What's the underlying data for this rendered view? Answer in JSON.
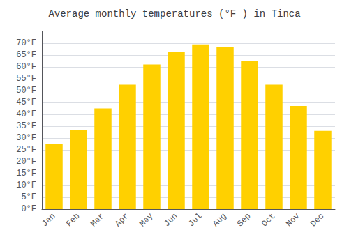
{
  "chart_data": {
    "type": "bar",
    "title": "Average monthly temperatures (°F ) in Tinca",
    "categories": [
      "Jan",
      "Feb",
      "Mar",
      "Apr",
      "May",
      "Jun",
      "Jul",
      "Aug",
      "Sep",
      "Oct",
      "Nov",
      "Dec"
    ],
    "values": [
      27.5,
      33.5,
      42.5,
      52.5,
      61.0,
      66.5,
      69.5,
      68.5,
      62.5,
      52.5,
      43.5,
      33.0
    ],
    "color": "#FFD000",
    "ylim": [
      0,
      75
    ],
    "yticks": [
      {
        "value": 0,
        "label": "0°F"
      },
      {
        "value": 5,
        "label": "5°F"
      },
      {
        "value": 10,
        "label": "10°F"
      },
      {
        "value": 15,
        "label": "15°F"
      },
      {
        "value": 20,
        "label": "20°F"
      },
      {
        "value": 25,
        "label": "25°F"
      },
      {
        "value": 30,
        "label": "30°F"
      },
      {
        "value": 35,
        "label": "35°F"
      },
      {
        "value": 40,
        "label": "40°F"
      },
      {
        "value": 45,
        "label": "45°F"
      },
      {
        "value": 50,
        "label": "50°F"
      },
      {
        "value": 55,
        "label": "55°F"
      },
      {
        "value": 60,
        "label": "60°F"
      },
      {
        "value": 65,
        "label": "65°F"
      },
      {
        "value": 70,
        "label": "70°F"
      }
    ],
    "grid": true
  }
}
